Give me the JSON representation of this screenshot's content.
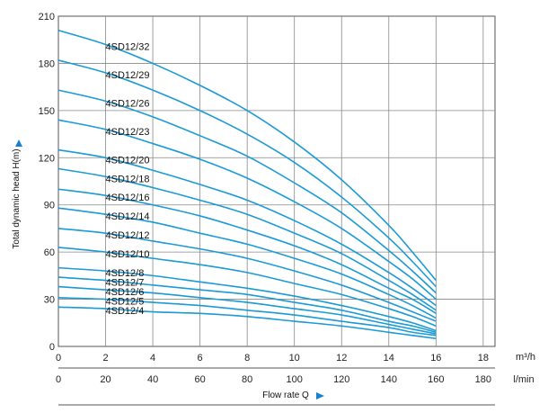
{
  "chart_data": {
    "type": "line",
    "title": "",
    "xlabel": "Flow rate Q",
    "ylabel": "Total dynamic head H(m)",
    "x_unit_primary": "m³/h",
    "x_unit_secondary": "l/min",
    "xlim": [
      0,
      18.5
    ],
    "ylim": [
      0,
      210
    ],
    "x_ticks": [
      "0",
      "2",
      "4",
      "6",
      "8",
      "10",
      "12",
      "14",
      "16",
      "18"
    ],
    "x_secondary_ticks": [
      "0",
      "20",
      "40",
      "60",
      "80",
      "100",
      "120",
      "140",
      "160",
      "180"
    ],
    "y_ticks": [
      "0",
      "30",
      "60",
      "90",
      "120",
      "150",
      "180",
      "210"
    ],
    "grid": true,
    "colors": {
      "curve": "#1a9ad6",
      "grid": "#888888",
      "arrow": "#1a7fd1"
    },
    "x": [
      0,
      2,
      4,
      6,
      8,
      10,
      12,
      14,
      15,
      16
    ],
    "series": [
      {
        "name": "4SD12/32",
        "values": [
          201,
          192,
          180,
          166,
          150,
          130,
          106,
          77,
          60,
          42
        ]
      },
      {
        "name": "4SD12/29",
        "values": [
          182,
          174,
          163,
          150,
          135,
          117,
          95,
          69,
          54,
          38
        ]
      },
      {
        "name": "4SD12/26",
        "values": [
          163,
          156,
          146,
          134,
          121,
          104,
          85,
          61,
          48,
          34
        ]
      },
      {
        "name": "4SD12/23",
        "values": [
          144,
          138,
          129,
          119,
          107,
          92,
          75,
          54,
          43,
          30
        ]
      },
      {
        "name": "4SD12/20",
        "values": [
          125,
          120,
          112,
          103,
          93,
          80,
          65,
          47,
          37,
          26
        ]
      },
      {
        "name": "4SD12/18",
        "values": [
          113,
          108,
          101,
          93,
          84,
          72,
          59,
          42,
          33,
          23
        ]
      },
      {
        "name": "4SD12/16",
        "values": [
          100,
          96,
          90,
          83,
          74,
          64,
          52,
          37,
          30,
          21
        ]
      },
      {
        "name": "4SD12/14",
        "values": [
          88,
          84,
          79,
          72,
          65,
          56,
          46,
          33,
          26,
          18
        ]
      },
      {
        "name": "4SD12/12",
        "values": [
          75,
          72,
          67,
          62,
          56,
          48,
          39,
          28,
          22,
          16
        ]
      },
      {
        "name": "4SD12/10",
        "values": [
          63,
          60,
          56,
          52,
          47,
          40,
          33,
          24,
          19,
          13
        ]
      },
      {
        "name": "4SD12/8",
        "values": [
          50,
          48,
          45,
          41,
          37,
          32,
          26,
          19,
          15,
          10
        ]
      },
      {
        "name": "4SD12/7",
        "values": [
          44,
          42,
          39,
          36,
          33,
          28,
          23,
          16,
          13,
          9
        ]
      },
      {
        "name": "4SD12/6",
        "values": [
          38,
          36,
          34,
          31,
          28,
          24,
          20,
          14,
          11,
          8
        ]
      },
      {
        "name": "4SD12/5",
        "values": [
          31,
          30,
          28,
          26,
          23,
          20,
          16,
          12,
          9,
          7
        ]
      },
      {
        "name": "4SD12/4",
        "values": [
          25,
          24,
          22,
          21,
          19,
          16,
          13,
          9,
          7,
          5
        ]
      }
    ]
  }
}
